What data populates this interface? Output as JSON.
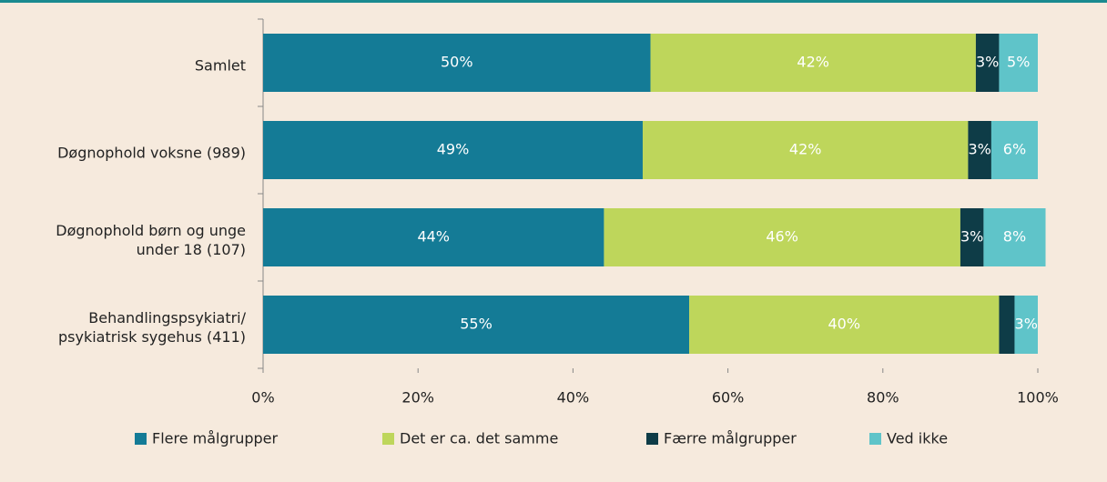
{
  "chart_data": {
    "type": "stacked_bar_horizontal",
    "categories": [
      "Samlet",
      "Døgnophold voksne (989)",
      "Døgnophold børn og unge under 18 (107)",
      "Behandlingspsykiatri/ psykiatrisk sygehus (411)"
    ],
    "series": [
      {
        "name": "Flere målgrupper",
        "color": "#147b96",
        "values": [
          50,
          49,
          44,
          55
        ],
        "value_labels": [
          "50%",
          "49%",
          "44%",
          "55%"
        ]
      },
      {
        "name": "Det er ca. det samme",
        "color": "#bed65b",
        "values": [
          42,
          42,
          46,
          40
        ],
        "value_labels": [
          "42%",
          "42%",
          "46%",
          "40%"
        ]
      },
      {
        "name": "Færre målgrupper",
        "color": "#0e3c47",
        "values": [
          3,
          3,
          3,
          2
        ],
        "value_labels": [
          "3%",
          "3%",
          "3%",
          null
        ]
      },
      {
        "name": "Ved ikke",
        "color": "#5fc4c9",
        "values": [
          5,
          6,
          8,
          3
        ],
        "value_labels": [
          "5%",
          "6%",
          "8%",
          "3%"
        ]
      }
    ],
    "xlim": [
      0,
      100
    ],
    "xticks": [
      {
        "value": 0,
        "label": "0%"
      },
      {
        "value": 20,
        "label": "20%"
      },
      {
        "value": 40,
        "label": "40%"
      },
      {
        "value": 60,
        "label": "60%"
      },
      {
        "value": 80,
        "label": "80%"
      },
      {
        "value": 100,
        "label": "100%"
      }
    ],
    "legend": "bottom"
  }
}
